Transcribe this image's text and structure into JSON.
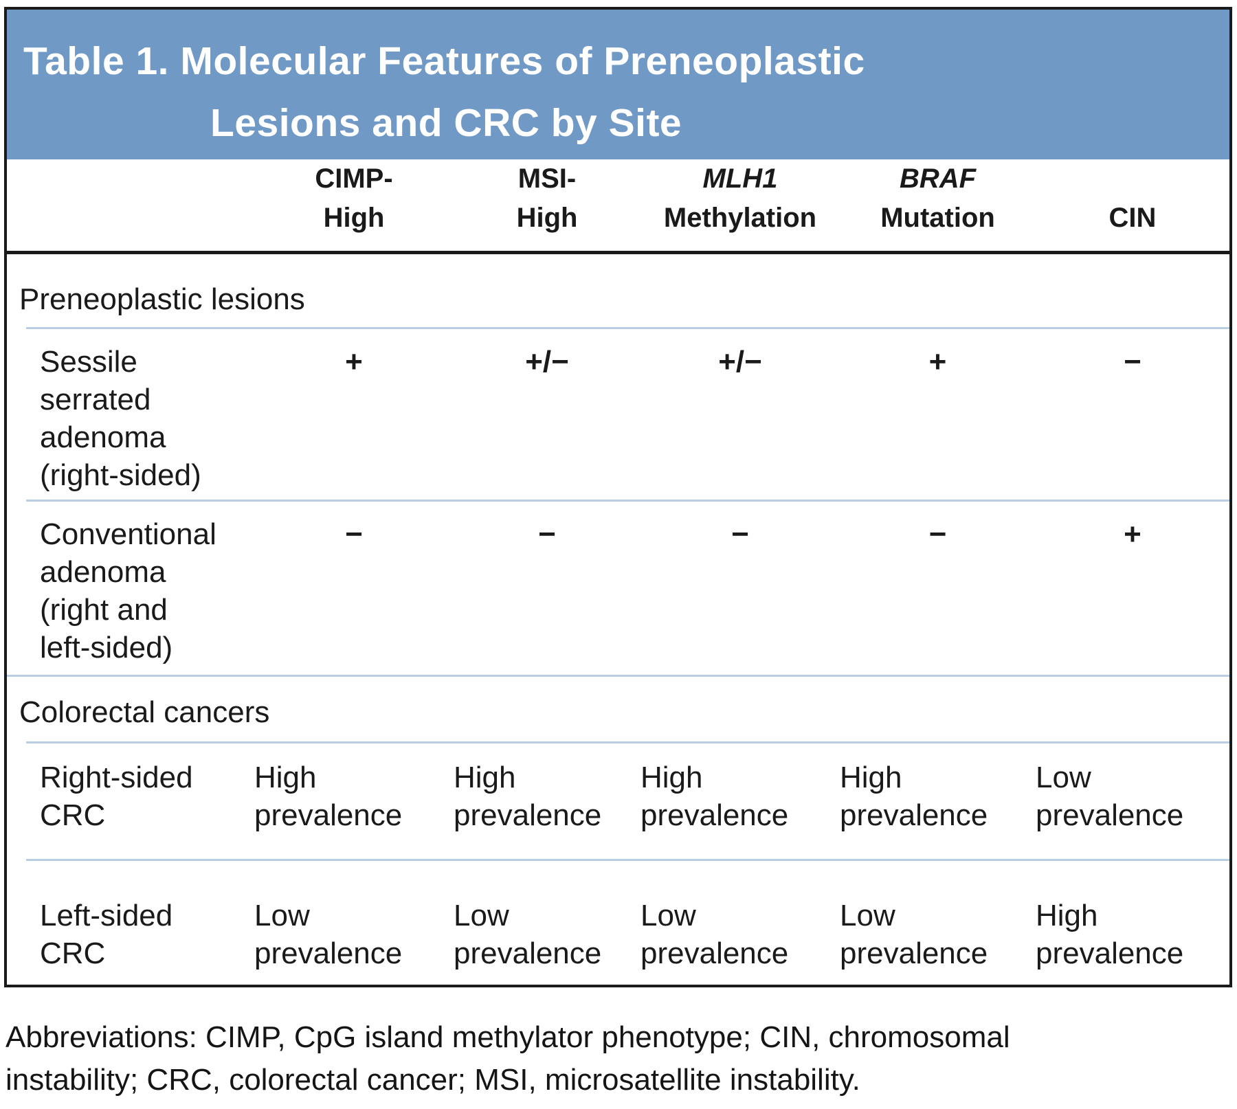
{
  "colors": {
    "header_bg": "#7199c5",
    "divider_blue": "#b9cde5",
    "border_black": "#1a1a1a"
  },
  "table": {
    "title": "Table 1. Molecular Features of Preneoplastic\nLesions and CRC by Site",
    "columns": [
      {
        "line1": "CIMP-",
        "line2": "High"
      },
      {
        "line1": "MSI-",
        "line2": "High"
      },
      {
        "line1": "MLH1",
        "line2": "Methylation"
      },
      {
        "line1": "BRAF",
        "line2": "Mutation"
      },
      {
        "line1": "CIN"
      }
    ],
    "sections": [
      {
        "label": "Preneoplastic lesions",
        "rows": [
          {
            "label": "Sessile\nserrated\nadenoma\n(right-sided)",
            "values": [
              "+",
              "+/−",
              "+/−",
              "+",
              "−"
            ]
          },
          {
            "label": "Conventional\nadenoma\n(right and\nleft-sided)",
            "values": [
              "−",
              "−",
              "−",
              "−",
              "+"
            ]
          }
        ]
      },
      {
        "label": "Colorectal cancers",
        "rows": [
          {
            "label": "Right-sided\nCRC",
            "values": [
              "High\nprevalence",
              "High\nprevalence",
              "High\nprevalence",
              "High\nprevalence",
              "Low\nprevalence"
            ]
          },
          {
            "label": "Left-sided\nCRC",
            "values": [
              "Low\nprevalence",
              "Low\nprevalence",
              "Low\nprevalence",
              "Low\nprevalence",
              "High\nprevalence"
            ]
          }
        ]
      }
    ]
  },
  "footer": {
    "abbreviations": "Abbreviations: CIMP, CpG island methylator phenotype; CIN, chromosomal\ninstability; CRC, colorectal cancer; MSI, microsatellite instability."
  }
}
